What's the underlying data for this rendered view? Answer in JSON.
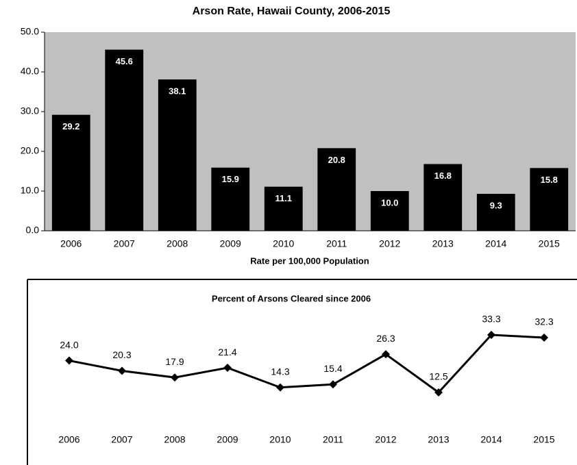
{
  "chart_data": [
    {
      "type": "bar",
      "title": "Arson Rate, Hawaii County, 2006-2015",
      "x_label": "Rate per 100,000 Population",
      "categories": [
        "2006",
        "2007",
        "2008",
        "2009",
        "2010",
        "2011",
        "2012",
        "2013",
        "2014",
        "2015"
      ],
      "values": [
        29.2,
        45.6,
        38.1,
        15.9,
        11.1,
        20.8,
        10.0,
        16.8,
        9.3,
        15.8
      ],
      "value_labels": [
        "29.2",
        "45.6",
        "38.1",
        "15.9",
        "11.1",
        "20.8",
        "10.0",
        "16.8",
        "9.3",
        "15.8"
      ],
      "color": "#000000",
      "background": "#c0c0c0",
      "ylim": [
        0,
        50
      ],
      "yticks": [
        {
          "value": 0,
          "label": "0.0"
        },
        {
          "value": 10,
          "label": "10.0"
        },
        {
          "value": 20,
          "label": "20.0"
        },
        {
          "value": 30,
          "label": "30.0"
        },
        {
          "value": 40,
          "label": "40.0"
        },
        {
          "value": 50,
          "label": "50.0"
        }
      ]
    },
    {
      "type": "line",
      "title": "Percent of  Arsons Cleared since 2006",
      "categories": [
        "2006",
        "2007",
        "2008",
        "2009",
        "2010",
        "2011",
        "2012",
        "2013",
        "2014",
        "2015"
      ],
      "values": [
        24.0,
        20.3,
        17.9,
        21.4,
        14.3,
        15.4,
        26.3,
        12.5,
        33.3,
        32.3
      ],
      "value_labels": [
        "24.0",
        "20.3",
        "17.9",
        "21.4",
        "14.3",
        "15.4",
        "26.3",
        "12.5",
        "33.3",
        "32.3"
      ],
      "color": "#000000"
    }
  ]
}
